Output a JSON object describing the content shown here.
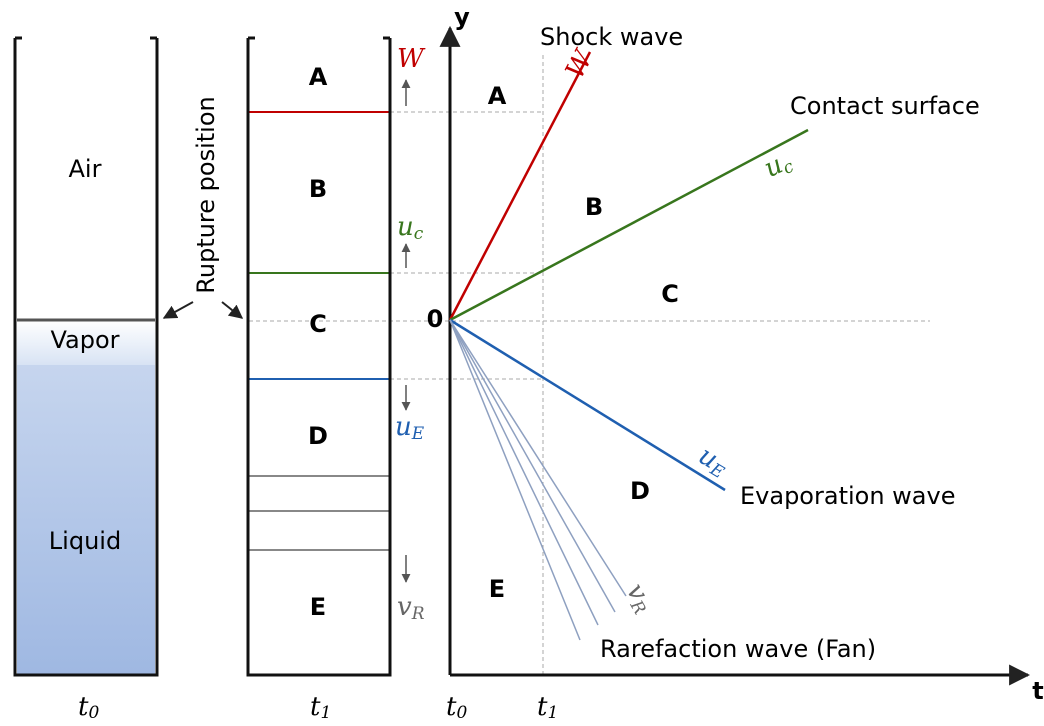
{
  "left_tube": {
    "air": "Air",
    "vapor": "Vapor",
    "liquid": "Liquid",
    "time": {
      "base": "t",
      "sub": "0"
    }
  },
  "rupture_label": "Rupture position",
  "middle_tube": {
    "regions": [
      "A",
      "B",
      "C",
      "D",
      "E"
    ],
    "time": {
      "base": "t",
      "sub": "1"
    },
    "shock": {
      "base": "W"
    },
    "contact": {
      "base": "u",
      "sub": "c"
    },
    "evaporation": {
      "base": "u",
      "sub": "E"
    },
    "rarefaction": {
      "base": "v",
      "sub": "R"
    }
  },
  "xt_diagram": {
    "y_axis": "y",
    "t_axis": "t",
    "origin": "0",
    "t0": {
      "base": "t",
      "sub": "0"
    },
    "t1": {
      "base": "t",
      "sub": "1"
    },
    "regions": [
      "A",
      "B",
      "C",
      "D",
      "E"
    ],
    "shock": {
      "name": "Shock wave",
      "symbol": {
        "base": "W"
      }
    },
    "contact": {
      "name": "Contact surface",
      "symbol": {
        "base": "u",
        "sub": "c"
      }
    },
    "evaporation": {
      "name": "Evaporation wave",
      "symbol": {
        "base": "u",
        "sub": "E"
      }
    },
    "rarefaction": {
      "name": "Rarefaction wave (Fan)",
      "symbol": {
        "base": "v",
        "sub": "R"
      }
    }
  }
}
